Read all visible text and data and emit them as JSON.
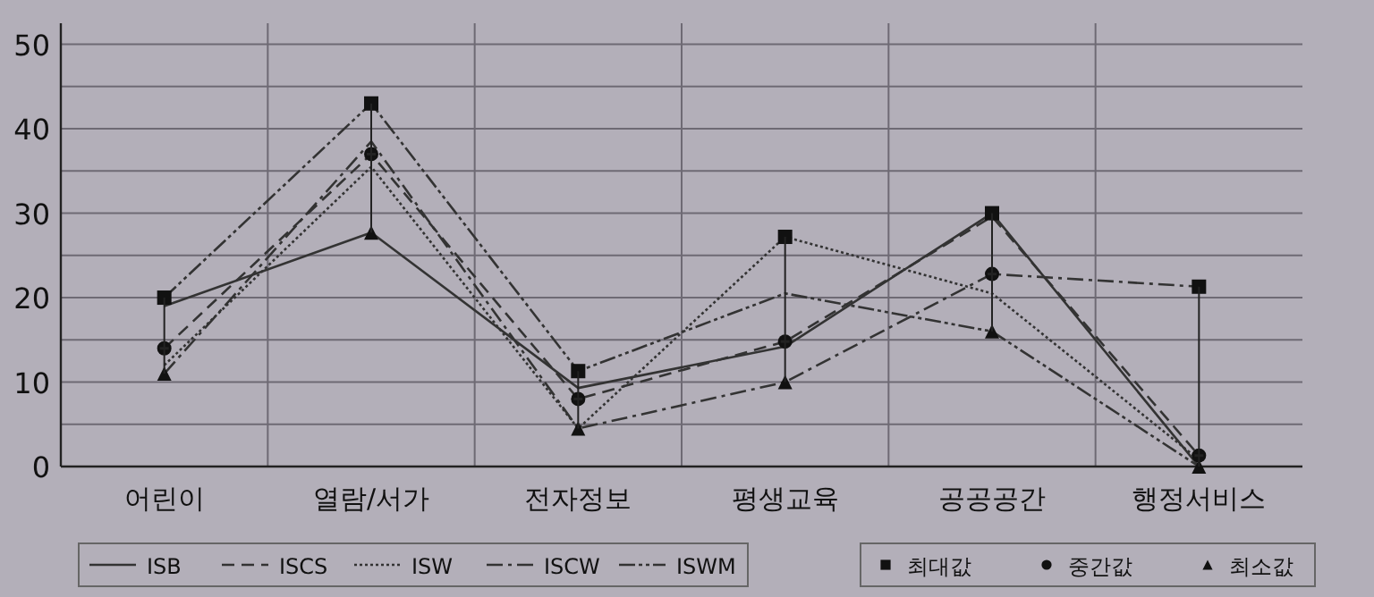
{
  "chart_data": {
    "type": "line",
    "categories": [
      "어린이",
      "열람/서가",
      "전자정보",
      "평생교육",
      "공공공간",
      "행정서비스"
    ],
    "ylim": [
      0,
      52.5
    ],
    "yticks": [
      0,
      10,
      20,
      30,
      40,
      50
    ],
    "grid": true,
    "legend": "bottom",
    "series": [
      {
        "name": "ISB",
        "color": "#333333",
        "line_style": "solid",
        "values": [
          19,
          27.7,
          9.3,
          14.2,
          30,
          0
        ]
      },
      {
        "name": "ISCS",
        "color": "#333333",
        "line_style": "dashed",
        "values": [
          14,
          37,
          8,
          14.8,
          29.6,
          1.3
        ]
      },
      {
        "name": "ISW",
        "color": "#333333",
        "line_style": "dotted",
        "values": [
          12,
          35.5,
          4.5,
          27.2,
          20.5,
          0.8
        ]
      },
      {
        "name": "ISCW",
        "color": "#333333",
        "line_style": "dashdot",
        "values": [
          11,
          38.5,
          4.5,
          10,
          22.8,
          21.3
        ]
      },
      {
        "name": "ISWM",
        "color": "#333333",
        "line_style": "dashdotdot",
        "values": [
          20,
          43,
          11.3,
          20.5,
          16,
          0
        ]
      },
      {
        "name": "최대값",
        "type": "scatter",
        "color": "#111111",
        "marker": "square",
        "values": [
          20,
          43,
          11.3,
          27.2,
          30,
          21.3
        ]
      },
      {
        "name": "중간값",
        "type": "scatter",
        "color": "#111111",
        "marker": "circle",
        "values": [
          14,
          37,
          8,
          14.8,
          22.8,
          1.3
        ]
      },
      {
        "name": "최소값",
        "type": "scatter",
        "color": "#111111",
        "marker": "triangle",
        "values": [
          11,
          27.7,
          4.5,
          10,
          16,
          0
        ]
      },
      {
        "type": "candlestick",
        "color": "#222222",
        "ohlc": [
          [
            14,
            20,
            11,
            14
          ],
          [
            37,
            43,
            27.7,
            37
          ],
          [
            8,
            11.3,
            4.5,
            8
          ],
          [
            14.8,
            27.2,
            10,
            14.8
          ],
          [
            22.8,
            30,
            16,
            22.8
          ],
          [
            1.3,
            21.3,
            0,
            1.3
          ]
        ]
      }
    ]
  }
}
